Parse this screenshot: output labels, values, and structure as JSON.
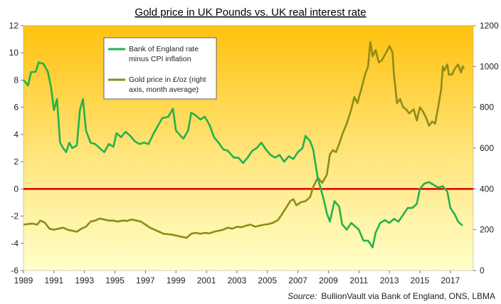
{
  "chart_data": {
    "type": "line",
    "title": "Gold price in UK Pounds vs. UK real interest rate",
    "x_range": [
      1989,
      2018.5
    ],
    "x_ticks": [
      "1989",
      "1991",
      "1993",
      "1995",
      "1997",
      "1999",
      "2001",
      "2003",
      "2005",
      "2007",
      "2009",
      "2011",
      "2013",
      "2015",
      "2017"
    ],
    "y_left_range": [
      -6,
      12
    ],
    "y_left_ticks": [
      "12",
      "10",
      "8",
      "6",
      "4",
      "2",
      "0",
      "-2",
      "-4",
      "-6"
    ],
    "y_right_range": [
      0,
      1200
    ],
    "y_right_ticks": [
      "1200",
      "1000",
      "800",
      "600",
      "400",
      "200",
      "0"
    ],
    "zero_line_value": 0,
    "series": [
      {
        "name": "Bank of England rate minus CPI inflation",
        "axis": "left",
        "color": "#22b24c",
        "points": [
          [
            1989.0,
            8.0
          ],
          [
            1989.3,
            7.6
          ],
          [
            1989.5,
            8.6
          ],
          [
            1989.8,
            8.6
          ],
          [
            1990.0,
            9.3
          ],
          [
            1990.3,
            9.2
          ],
          [
            1990.6,
            8.6
          ],
          [
            1990.8,
            7.5
          ],
          [
            1991.0,
            5.8
          ],
          [
            1991.2,
            6.6
          ],
          [
            1991.4,
            3.4
          ],
          [
            1991.6,
            3.0
          ],
          [
            1991.8,
            2.7
          ],
          [
            1992.0,
            3.4
          ],
          [
            1992.2,
            3.0
          ],
          [
            1992.5,
            3.2
          ],
          [
            1992.7,
            5.8
          ],
          [
            1992.9,
            6.6
          ],
          [
            1993.1,
            4.3
          ],
          [
            1993.4,
            3.4
          ],
          [
            1993.7,
            3.3
          ],
          [
            1994.0,
            3.0
          ],
          [
            1994.3,
            2.7
          ],
          [
            1994.6,
            3.3
          ],
          [
            1994.9,
            3.1
          ],
          [
            1995.1,
            4.1
          ],
          [
            1995.4,
            3.8
          ],
          [
            1995.7,
            4.2
          ],
          [
            1996.0,
            3.9
          ],
          [
            1996.3,
            3.5
          ],
          [
            1996.6,
            3.3
          ],
          [
            1996.9,
            3.4
          ],
          [
            1997.2,
            3.3
          ],
          [
            1997.5,
            4.0
          ],
          [
            1997.8,
            4.6
          ],
          [
            1998.1,
            5.2
          ],
          [
            1998.5,
            5.3
          ],
          [
            1998.8,
            5.9
          ],
          [
            1999.0,
            4.3
          ],
          [
            1999.3,
            3.9
          ],
          [
            1999.5,
            3.7
          ],
          [
            1999.8,
            4.3
          ],
          [
            2000.0,
            5.6
          ],
          [
            2000.3,
            5.4
          ],
          [
            2000.6,
            5.1
          ],
          [
            2000.9,
            5.3
          ],
          [
            2001.2,
            4.7
          ],
          [
            2001.5,
            3.8
          ],
          [
            2001.8,
            3.4
          ],
          [
            2002.1,
            2.9
          ],
          [
            2002.4,
            2.8
          ],
          [
            2002.8,
            2.3
          ],
          [
            2003.1,
            2.3
          ],
          [
            2003.4,
            1.9
          ],
          [
            2003.7,
            2.3
          ],
          [
            2004.0,
            2.8
          ],
          [
            2004.3,
            3.0
          ],
          [
            2004.6,
            3.4
          ],
          [
            2004.9,
            2.9
          ],
          [
            2005.2,
            2.5
          ],
          [
            2005.5,
            2.3
          ],
          [
            2005.8,
            2.5
          ],
          [
            2006.1,
            2.0
          ],
          [
            2006.4,
            2.4
          ],
          [
            2006.7,
            2.2
          ],
          [
            2007.0,
            2.7
          ],
          [
            2007.3,
            3.0
          ],
          [
            2007.5,
            3.9
          ],
          [
            2007.8,
            3.5
          ],
          [
            2008.0,
            2.9
          ],
          [
            2008.3,
            0.8
          ],
          [
            2008.5,
            0.0
          ],
          [
            2008.7,
            -0.8
          ],
          [
            2008.9,
            -1.8
          ],
          [
            2009.1,
            -2.4
          ],
          [
            2009.4,
            -0.9
          ],
          [
            2009.7,
            -1.3
          ],
          [
            2009.9,
            -2.6
          ],
          [
            2010.2,
            -3.0
          ],
          [
            2010.5,
            -2.5
          ],
          [
            2010.8,
            -2.8
          ],
          [
            2011.0,
            -3.0
          ],
          [
            2011.3,
            -3.8
          ],
          [
            2011.6,
            -3.8
          ],
          [
            2011.9,
            -4.3
          ],
          [
            2012.1,
            -3.2
          ],
          [
            2012.4,
            -2.5
          ],
          [
            2012.7,
            -2.3
          ],
          [
            2013.0,
            -2.5
          ],
          [
            2013.3,
            -2.2
          ],
          [
            2013.6,
            -2.4
          ],
          [
            2013.9,
            -1.9
          ],
          [
            2014.2,
            -1.4
          ],
          [
            2014.5,
            -1.4
          ],
          [
            2014.8,
            -1.1
          ],
          [
            2015.0,
            0.0
          ],
          [
            2015.3,
            0.4
          ],
          [
            2015.6,
            0.5
          ],
          [
            2015.9,
            0.3
          ],
          [
            2016.2,
            0.1
          ],
          [
            2016.5,
            0.2
          ],
          [
            2016.8,
            -0.2
          ],
          [
            2017.0,
            -1.4
          ],
          [
            2017.3,
            -1.9
          ],
          [
            2017.5,
            -2.4
          ],
          [
            2017.8,
            -2.7
          ]
        ]
      },
      {
        "name": "Gold price in £/oz (right axis, month average)",
        "axis": "right",
        "color": "#8c8c1a",
        "points": [
          [
            1989.0,
            225
          ],
          [
            1989.3,
            228
          ],
          [
            1989.6,
            230
          ],
          [
            1989.9,
            225
          ],
          [
            1990.1,
            245
          ],
          [
            1990.4,
            235
          ],
          [
            1990.7,
            205
          ],
          [
            1991.0,
            200
          ],
          [
            1991.3,
            205
          ],
          [
            1991.6,
            210
          ],
          [
            1991.9,
            200
          ],
          [
            1992.2,
            195
          ],
          [
            1992.5,
            190
          ],
          [
            1992.8,
            205
          ],
          [
            1993.1,
            215
          ],
          [
            1993.4,
            240
          ],
          [
            1993.7,
            245
          ],
          [
            1994.0,
            255
          ],
          [
            1994.3,
            250
          ],
          [
            1994.6,
            245
          ],
          [
            1994.9,
            245
          ],
          [
            1995.2,
            240
          ],
          [
            1995.5,
            245
          ],
          [
            1995.8,
            243
          ],
          [
            1996.1,
            250
          ],
          [
            1996.4,
            245
          ],
          [
            1996.7,
            240
          ],
          [
            1997.0,
            225
          ],
          [
            1997.3,
            210
          ],
          [
            1997.6,
            200
          ],
          [
            1997.9,
            190
          ],
          [
            1998.2,
            180
          ],
          [
            1998.5,
            178
          ],
          [
            1998.8,
            175
          ],
          [
            1999.1,
            170
          ],
          [
            1999.4,
            165
          ],
          [
            1999.7,
            160
          ],
          [
            2000.0,
            180
          ],
          [
            2000.3,
            185
          ],
          [
            2000.6,
            180
          ],
          [
            2000.9,
            185
          ],
          [
            2001.2,
            182
          ],
          [
            2001.5,
            190
          ],
          [
            2001.8,
            195
          ],
          [
            2002.1,
            200
          ],
          [
            2002.4,
            210
          ],
          [
            2002.7,
            205
          ],
          [
            2003.0,
            215
          ],
          [
            2003.3,
            212
          ],
          [
            2003.6,
            220
          ],
          [
            2003.9,
            225
          ],
          [
            2004.2,
            215
          ],
          [
            2004.5,
            220
          ],
          [
            2004.8,
            225
          ],
          [
            2005.1,
            228
          ],
          [
            2005.4,
            235
          ],
          [
            2005.7,
            248
          ],
          [
            2005.9,
            270
          ],
          [
            2006.2,
            305
          ],
          [
            2006.5,
            340
          ],
          [
            2006.7,
            350
          ],
          [
            2006.9,
            320
          ],
          [
            2007.2,
            335
          ],
          [
            2007.5,
            340
          ],
          [
            2007.8,
            360
          ],
          [
            2008.0,
            410
          ],
          [
            2008.3,
            455
          ],
          [
            2008.6,
            430
          ],
          [
            2008.9,
            470
          ],
          [
            2009.1,
            570
          ],
          [
            2009.3,
            590
          ],
          [
            2009.5,
            580
          ],
          [
            2009.7,
            620
          ],
          [
            2009.9,
            665
          ],
          [
            2010.2,
            720
          ],
          [
            2010.5,
            790
          ],
          [
            2010.7,
            850
          ],
          [
            2010.9,
            820
          ],
          [
            2011.2,
            900
          ],
          [
            2011.4,
            960
          ],
          [
            2011.6,
            1000
          ],
          [
            2011.75,
            1120
          ],
          [
            2011.9,
            1050
          ],
          [
            2012.1,
            1080
          ],
          [
            2012.3,
            1020
          ],
          [
            2012.5,
            1030
          ],
          [
            2012.8,
            1070
          ],
          [
            2013.0,
            1100
          ],
          [
            2013.2,
            1070
          ],
          [
            2013.3,
            960
          ],
          [
            2013.5,
            820
          ],
          [
            2013.7,
            840
          ],
          [
            2013.9,
            800
          ],
          [
            2014.1,
            790
          ],
          [
            2014.3,
            770
          ],
          [
            2014.6,
            790
          ],
          [
            2014.8,
            735
          ],
          [
            2015.0,
            800
          ],
          [
            2015.2,
            780
          ],
          [
            2015.4,
            750
          ],
          [
            2015.6,
            710
          ],
          [
            2015.8,
            730
          ],
          [
            2016.0,
            720
          ],
          [
            2016.2,
            800
          ],
          [
            2016.4,
            890
          ],
          [
            2016.5,
            1000
          ],
          [
            2016.6,
            980
          ],
          [
            2016.8,
            1010
          ],
          [
            2016.9,
            960
          ],
          [
            2017.1,
            960
          ],
          [
            2017.3,
            990
          ],
          [
            2017.5,
            1010
          ],
          [
            2017.7,
            970
          ],
          [
            2017.8,
            1000
          ],
          [
            2017.9,
            990
          ]
        ]
      }
    ],
    "legend": [
      {
        "label_lines": [
          "Bank of England rate",
          "minus CPI inflation"
        ]
      },
      {
        "label_lines": [
          "Gold price in £/oz (right",
          "axis, month average)"
        ]
      }
    ],
    "source_label": "Source:",
    "source_text": "BullionVault via Bank of England, ONS, LBMA",
    "background_top": "#ffc20e",
    "background_bottom": "#ffffc8",
    "zero_line_color": "#e00000"
  }
}
